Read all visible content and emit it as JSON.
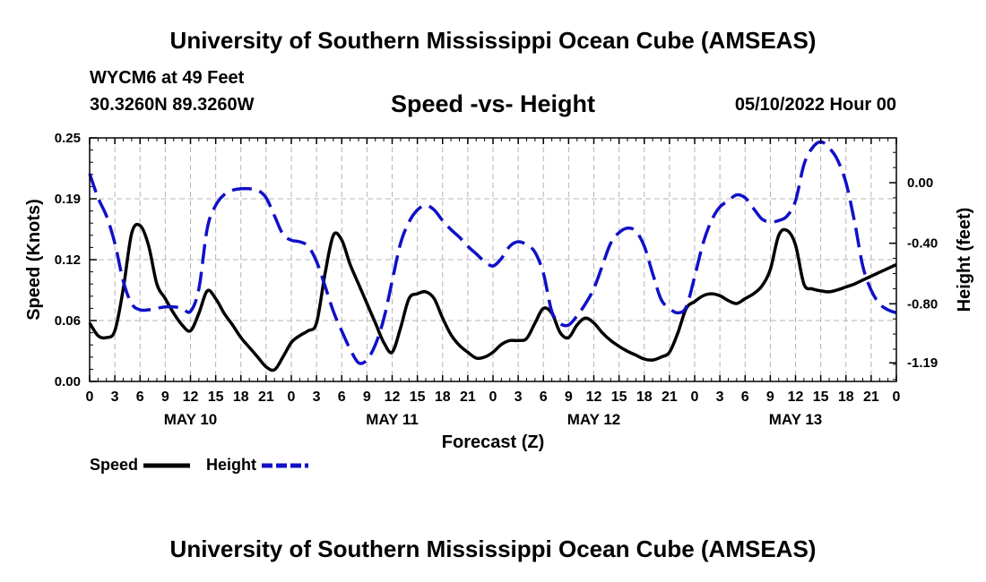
{
  "header": {
    "title": "University of Southern Mississippi Ocean Cube (AMSEAS)",
    "station": "WYCM6 at 49 Feet",
    "coords": "30.3260N  89.3260W",
    "subtitle": "Speed -vs- Height",
    "datetime": "05/10/2022 Hour 00"
  },
  "footer": {
    "title": "University of Southern Mississippi Ocean Cube (AMSEAS)"
  },
  "chart_data": {
    "type": "line",
    "title": "Speed -vs- Height",
    "xlabel": "Forecast (Z)",
    "ylabel_left": "Speed (Knots)",
    "ylabel_right": "Height (feet)",
    "x_unit": "hours since 05/10/2022 00Z",
    "xlim": [
      0,
      96
    ],
    "ylim_left": [
      0,
      0.25
    ],
    "ylim_right": [
      -1.313,
      0.296
    ],
    "grid": true,
    "legend_position": "bottom-left",
    "left_ticks": [
      "0.00",
      "0.06",
      "0.12",
      "0.19",
      "0.25"
    ],
    "left_tick_values": [
      0,
      0.0625,
      0.125,
      0.1875,
      0.25
    ],
    "right_ticks": [
      "-1.19",
      "-0.80",
      "-0.40",
      "0.00"
    ],
    "right_tick_values": [
      -1.19,
      -0.8,
      -0.4,
      0.0
    ],
    "x_tick_labels": [
      "0",
      "3",
      "6",
      "9",
      "12",
      "15",
      "18",
      "21",
      "0",
      "3",
      "6",
      "9",
      "12",
      "15",
      "18",
      "21",
      "0",
      "3",
      "6",
      "9",
      "12",
      "15",
      "18",
      "21",
      "0",
      "3",
      "6",
      "9",
      "12",
      "15",
      "18",
      "21",
      "0"
    ],
    "day_labels": [
      {
        "label": "MAY 10",
        "hour": 12
      },
      {
        "label": "MAY 11",
        "hour": 36
      },
      {
        "label": "MAY 12",
        "hour": 60
      },
      {
        "label": "MAY 13",
        "hour": 84
      }
    ],
    "series": [
      {
        "name": "Speed",
        "axis": "left",
        "color": "#000000",
        "dashed": false,
        "x": [
          0,
          1,
          2,
          3,
          4,
          5,
          6,
          7,
          8,
          9,
          10,
          11,
          12,
          13,
          14,
          15,
          16,
          17,
          18,
          19,
          20,
          21,
          22,
          23,
          24,
          25,
          26,
          27,
          28,
          29,
          30,
          31,
          32,
          33,
          34,
          35,
          36,
          37,
          38,
          39,
          40,
          41,
          42,
          43,
          44,
          45,
          46,
          47,
          48,
          49,
          50,
          51,
          52,
          53,
          54,
          55,
          56,
          57,
          58,
          59,
          60,
          61,
          62,
          63,
          64,
          65,
          66,
          67,
          68,
          69,
          70,
          71,
          72,
          73,
          74,
          75,
          76,
          77,
          78,
          79,
          80,
          81,
          82,
          83,
          84,
          85,
          86,
          87,
          88,
          89,
          90,
          91,
          92,
          93,
          94,
          95,
          96
        ],
        "values": [
          0.06,
          0.047,
          0.045,
          0.052,
          0.095,
          0.152,
          0.16,
          0.14,
          0.1,
          0.085,
          0.07,
          0.058,
          0.052,
          0.07,
          0.093,
          0.085,
          0.07,
          0.058,
          0.045,
          0.035,
          0.025,
          0.015,
          0.012,
          0.025,
          0.04,
          0.047,
          0.052,
          0.06,
          0.11,
          0.15,
          0.145,
          0.12,
          0.1,
          0.08,
          0.06,
          0.04,
          0.03,
          0.055,
          0.085,
          0.09,
          0.092,
          0.085,
          0.065,
          0.048,
          0.037,
          0.03,
          0.024,
          0.025,
          0.03,
          0.038,
          0.042,
          0.042,
          0.044,
          0.06,
          0.075,
          0.07,
          0.05,
          0.045,
          0.058,
          0.065,
          0.06,
          0.05,
          0.042,
          0.036,
          0.031,
          0.027,
          0.023,
          0.022,
          0.025,
          0.03,
          0.05,
          0.075,
          0.082,
          0.088,
          0.09,
          0.088,
          0.083,
          0.08,
          0.085,
          0.09,
          0.098,
          0.115,
          0.15,
          0.155,
          0.14,
          0.1,
          0.095,
          0.093,
          0.092,
          0.094,
          0.097,
          0.1,
          0.104,
          0.108,
          0.112,
          0.116,
          0.12
        ]
      },
      {
        "name": "Height",
        "axis": "right",
        "color": "#1010c8",
        "dashed": true,
        "x": [
          0,
          1,
          2,
          3,
          4,
          5,
          6,
          7,
          8,
          9,
          10,
          11,
          12,
          13,
          14,
          15,
          16,
          17,
          18,
          19,
          20,
          21,
          22,
          23,
          24,
          25,
          26,
          27,
          28,
          29,
          30,
          31,
          32,
          33,
          34,
          35,
          36,
          37,
          38,
          39,
          40,
          41,
          42,
          43,
          44,
          45,
          46,
          47,
          48,
          49,
          50,
          51,
          52,
          53,
          54,
          55,
          56,
          57,
          58,
          59,
          60,
          61,
          62,
          63,
          64,
          65,
          66,
          67,
          68,
          69,
          70,
          71,
          72,
          73,
          74,
          75,
          76,
          77,
          78,
          79,
          80,
          81,
          82,
          83,
          84,
          85,
          86,
          87,
          88,
          89,
          90,
          91,
          92,
          93,
          94,
          95,
          96
        ],
        "values": [
          0.06,
          -0.1,
          -0.22,
          -0.4,
          -0.65,
          -0.8,
          -0.84,
          -0.84,
          -0.83,
          -0.82,
          -0.82,
          -0.83,
          -0.85,
          -0.7,
          -0.3,
          -0.15,
          -0.08,
          -0.05,
          -0.04,
          -0.04,
          -0.05,
          -0.1,
          -0.22,
          -0.34,
          -0.38,
          -0.39,
          -0.42,
          -0.52,
          -0.68,
          -0.85,
          -0.98,
          -1.1,
          -1.19,
          -1.17,
          -1.07,
          -0.9,
          -0.65,
          -0.4,
          -0.26,
          -0.18,
          -0.15,
          -0.18,
          -0.25,
          -0.31,
          -0.36,
          -0.42,
          -0.47,
          -0.52,
          -0.55,
          -0.5,
          -0.42,
          -0.39,
          -0.41,
          -0.46,
          -0.6,
          -0.85,
          -0.93,
          -0.94,
          -0.88,
          -0.8,
          -0.7,
          -0.55,
          -0.4,
          -0.33,
          -0.3,
          -0.32,
          -0.42,
          -0.6,
          -0.77,
          -0.83,
          -0.86,
          -0.82,
          -0.62,
          -0.4,
          -0.25,
          -0.16,
          -0.12,
          -0.08,
          -0.1,
          -0.17,
          -0.24,
          -0.26,
          -0.25,
          -0.22,
          -0.12,
          0.12,
          0.23,
          0.27,
          0.23,
          0.15,
          0.0,
          -0.25,
          -0.55,
          -0.71,
          -0.8,
          -0.84,
          -0.86
        ]
      }
    ]
  }
}
